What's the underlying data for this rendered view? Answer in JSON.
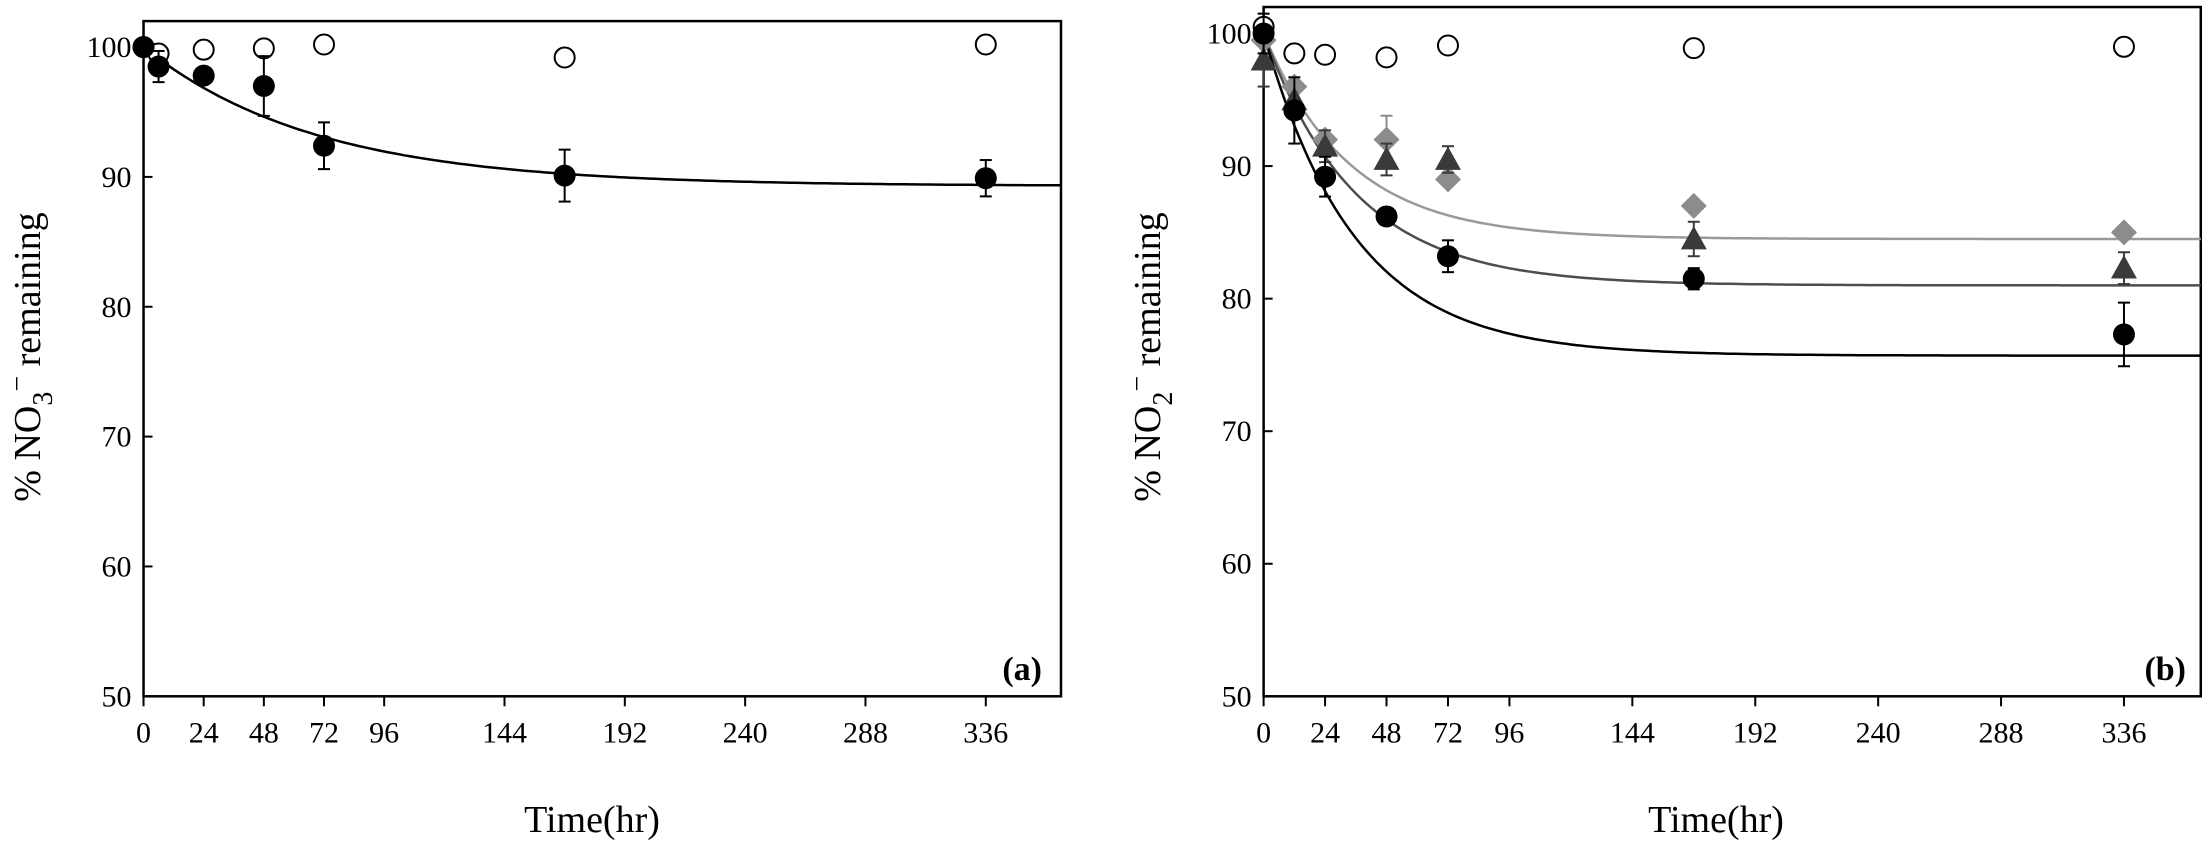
{
  "chart_data": [
    {
      "type": "scatter",
      "panel_label": "(a)",
      "xlabel": "Time(hr)",
      "ylabel_prefix": "% NO",
      "ylabel_sub": "3",
      "ylabel_sup": "−",
      "ylabel_suffix": " remaining",
      "xlim": [
        0,
        366
      ],
      "ylim": [
        50,
        102
      ],
      "xticks": [
        0,
        24,
        48,
        72,
        96,
        144,
        192,
        240,
        288,
        336
      ],
      "yticks": [
        50,
        60,
        70,
        80,
        90,
        100
      ],
      "series": [
        {
          "name": "open circles",
          "marker": "open-circle",
          "color": "#000000",
          "x": [
            0,
            6,
            24,
            48,
            72,
            168,
            336
          ],
          "y": [
            100,
            99.5,
            99.8,
            99.9,
            100.2,
            99.2,
            100.2
          ],
          "err": [
            0,
            0,
            0,
            0,
            0,
            0,
            0
          ]
        },
        {
          "name": "filled circles",
          "marker": "filled-circle",
          "color": "#000000",
          "x": [
            0,
            6,
            24,
            48,
            72,
            168,
            336
          ],
          "y": [
            100,
            98.5,
            97.8,
            97,
            92.4,
            90.1,
            89.9
          ],
          "err": [
            0,
            1.2,
            0,
            2.3,
            1.8,
            2,
            1.4
          ]
        }
      ],
      "fits": [
        {
          "color": "#000000",
          "y0": 100,
          "yinf": 89.3,
          "k": 0.0145
        }
      ]
    },
    {
      "type": "scatter",
      "panel_label": "(b)",
      "xlabel": "Time(hr)",
      "ylabel_prefix": "% NO",
      "ylabel_sub": "2",
      "ylabel_sup": "−",
      "ylabel_suffix": " remaining",
      "xlim": [
        0,
        366
      ],
      "ylim": [
        50,
        102
      ],
      "xticks": [
        0,
        24,
        48,
        72,
        96,
        144,
        192,
        240,
        288,
        336
      ],
      "yticks": [
        50,
        60,
        70,
        80,
        90,
        100
      ],
      "series": [
        {
          "name": "open circles",
          "marker": "open-circle",
          "color": "#000000",
          "x": [
            0,
            12,
            24,
            48,
            72,
            168,
            336
          ],
          "y": [
            100.5,
            98.5,
            98.4,
            98.2,
            99.1,
            98.9,
            99
          ],
          "err": [
            0,
            0,
            0,
            0,
            0,
            0,
            0
          ]
        },
        {
          "name": "grey diamonds",
          "marker": "diamond",
          "color": "#8c8c8c",
          "x": [
            0,
            12,
            24,
            48,
            72,
            168,
            336
          ],
          "y": [
            99.5,
            96,
            92,
            92,
            89,
            87,
            85
          ],
          "err": [
            0,
            0,
            0,
            1.8,
            0,
            0,
            0
          ]
        },
        {
          "name": "dark grey triangles",
          "marker": "triangle",
          "color": "#3a3a3a",
          "x": [
            0,
            12,
            24,
            48,
            72,
            168,
            336
          ],
          "y": [
            98,
            95,
            91.5,
            90.5,
            90.5,
            84.5,
            82.3
          ],
          "err": [
            2,
            0,
            1.2,
            1.2,
            1,
            1.3,
            1.2
          ]
        },
        {
          "name": "filled circles",
          "marker": "filled-circle",
          "color": "#000000",
          "x": [
            0,
            12,
            24,
            48,
            72,
            168,
            336
          ],
          "y": [
            100,
            94.2,
            89.2,
            86.2,
            83.2,
            81.5,
            77.3
          ],
          "err": [
            1.5,
            2.5,
            1.5,
            0,
            1.2,
            0.8,
            2.4
          ]
        }
      ],
      "fits": [
        {
          "color": "#999999",
          "y0": 100,
          "yinf": 84.5,
          "k": 0.03
        },
        {
          "color": "#4d4d4d",
          "y0": 100,
          "yinf": 81,
          "k": 0.028
        },
        {
          "color": "#000000",
          "y0": 100,
          "yinf": 75.7,
          "k": 0.028
        }
      ]
    }
  ]
}
